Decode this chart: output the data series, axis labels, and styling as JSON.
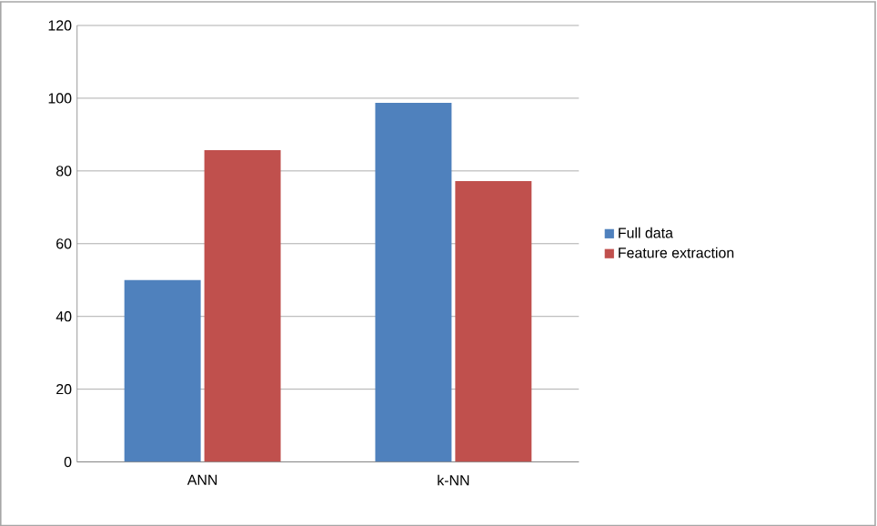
{
  "chart_data": {
    "type": "bar",
    "categories": [
      "ANN",
      "k-NN"
    ],
    "series": [
      {
        "name": "Full data",
        "color": "#4f81bd",
        "values": [
          50,
          98.7
        ]
      },
      {
        "name": "Feature extraction",
        "color": "#c0504d",
        "values": [
          85.7,
          77.2
        ]
      }
    ],
    "ylim": [
      0,
      120
    ],
    "yticks": [
      0,
      20,
      40,
      60,
      80,
      100,
      120
    ],
    "grid": "y",
    "legend": "right"
  }
}
